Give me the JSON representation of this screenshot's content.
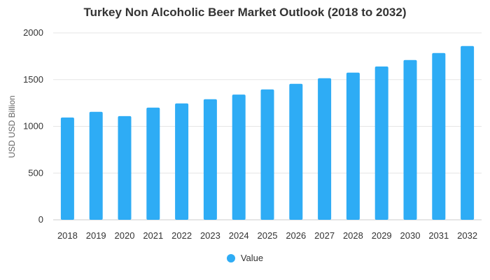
{
  "chart_data": {
    "type": "bar",
    "title": "Turkey Non Alcoholic Beer Market Outlook (2018 to 2032)",
    "xlabel": "",
    "ylabel": "USD USD Billion",
    "categories": [
      "2018",
      "2019",
      "2020",
      "2021",
      "2022",
      "2023",
      "2024",
      "2025",
      "2026",
      "2027",
      "2028",
      "2029",
      "2030",
      "2031",
      "2032"
    ],
    "series": [
      {
        "name": "Value",
        "color": "#2eacf5",
        "values": [
          1095,
          1155,
          1110,
          1200,
          1245,
          1290,
          1340,
          1395,
          1455,
          1515,
          1575,
          1640,
          1710,
          1785,
          1860
        ]
      }
    ],
    "ylim": [
      0,
      2000
    ],
    "yticks": [
      "0",
      "500",
      "1000",
      "1500",
      "2000"
    ],
    "grid": true,
    "legend_position": "bottom"
  }
}
